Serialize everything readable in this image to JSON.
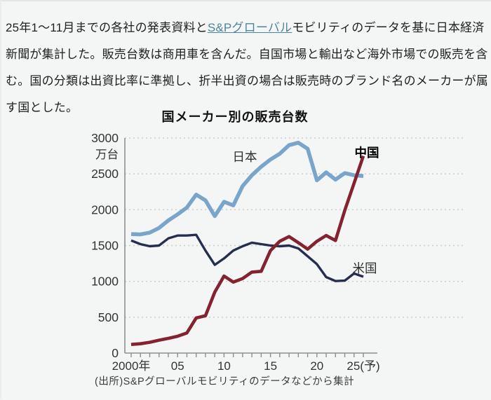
{
  "intro_paragraph": {
    "text_before_link": "25年1〜11月までの各社の発表資料と",
    "link_text": "S&Pグローバル",
    "text_after_link": "モビリティのデータを基に日本経済新聞が集計した。販売台数は商用車を含んだ。自国市場と輸出など海外市場での販売を含む。国の分類は出資比率に準拠し、折半出資の場合は販売時のブランド名のメーカーが属す国とした。",
    "link_color": "#4d84a0"
  },
  "chart_data": {
    "type": "line",
    "title": "国メーカー別の販売台数",
    "unit_label": "万台",
    "source": "(出所)S&Pグローバルモビリティのデータなどから集計",
    "x": [
      2000,
      2001,
      2002,
      2003,
      2004,
      2005,
      2006,
      2007,
      2008,
      2009,
      2010,
      2011,
      2012,
      2013,
      2014,
      2015,
      2016,
      2017,
      2018,
      2019,
      2020,
      2021,
      2022,
      2023,
      2024,
      2025
    ],
    "x_axis_labels": [
      {
        "year": 2000,
        "label": "2000年"
      },
      {
        "year": 2005,
        "label": "05"
      },
      {
        "year": 2010,
        "label": "10"
      },
      {
        "year": 2015,
        "label": "15"
      },
      {
        "year": 2020,
        "label": "20"
      },
      {
        "year": 2025,
        "label": "25(予)"
      }
    ],
    "ylim": [
      0,
      3000
    ],
    "y_ticks": [
      0,
      500,
      1000,
      1500,
      2000,
      2500,
      3000
    ],
    "grid": "dotted-horizontal",
    "legend_position": "inline-labels",
    "series": [
      {
        "id": "japan",
        "name": "日本",
        "color": "#7aa5ca",
        "values": [
          1660,
          1655,
          1680,
          1745,
          1850,
          1935,
          2030,
          2210,
          2130,
          1910,
          2110,
          2060,
          2330,
          2480,
          2600,
          2700,
          2780,
          2900,
          2935,
          2850,
          2410,
          2520,
          2420,
          2510,
          2480,
          2470
        ]
      },
      {
        "id": "china",
        "name": "中国",
        "color": "#84232f",
        "values": [
          120,
          130,
          150,
          180,
          205,
          235,
          280,
          490,
          520,
          850,
          1075,
          990,
          1040,
          1130,
          1140,
          1430,
          1560,
          1625,
          1540,
          1450,
          1560,
          1640,
          1570,
          1990,
          2370,
          2750
        ]
      },
      {
        "id": "us",
        "name": "米国",
        "color": "#262e4f",
        "values": [
          1570,
          1520,
          1490,
          1500,
          1600,
          1640,
          1640,
          1650,
          1430,
          1230,
          1320,
          1430,
          1490,
          1540,
          1520,
          1500,
          1490,
          1500,
          1460,
          1350,
          1240,
          1060,
          1005,
          1010,
          1110,
          1065
        ]
      }
    ],
    "axis_color": "#8b8f90",
    "grid_color": "#c7cbcc",
    "label_color": "#333333"
  }
}
